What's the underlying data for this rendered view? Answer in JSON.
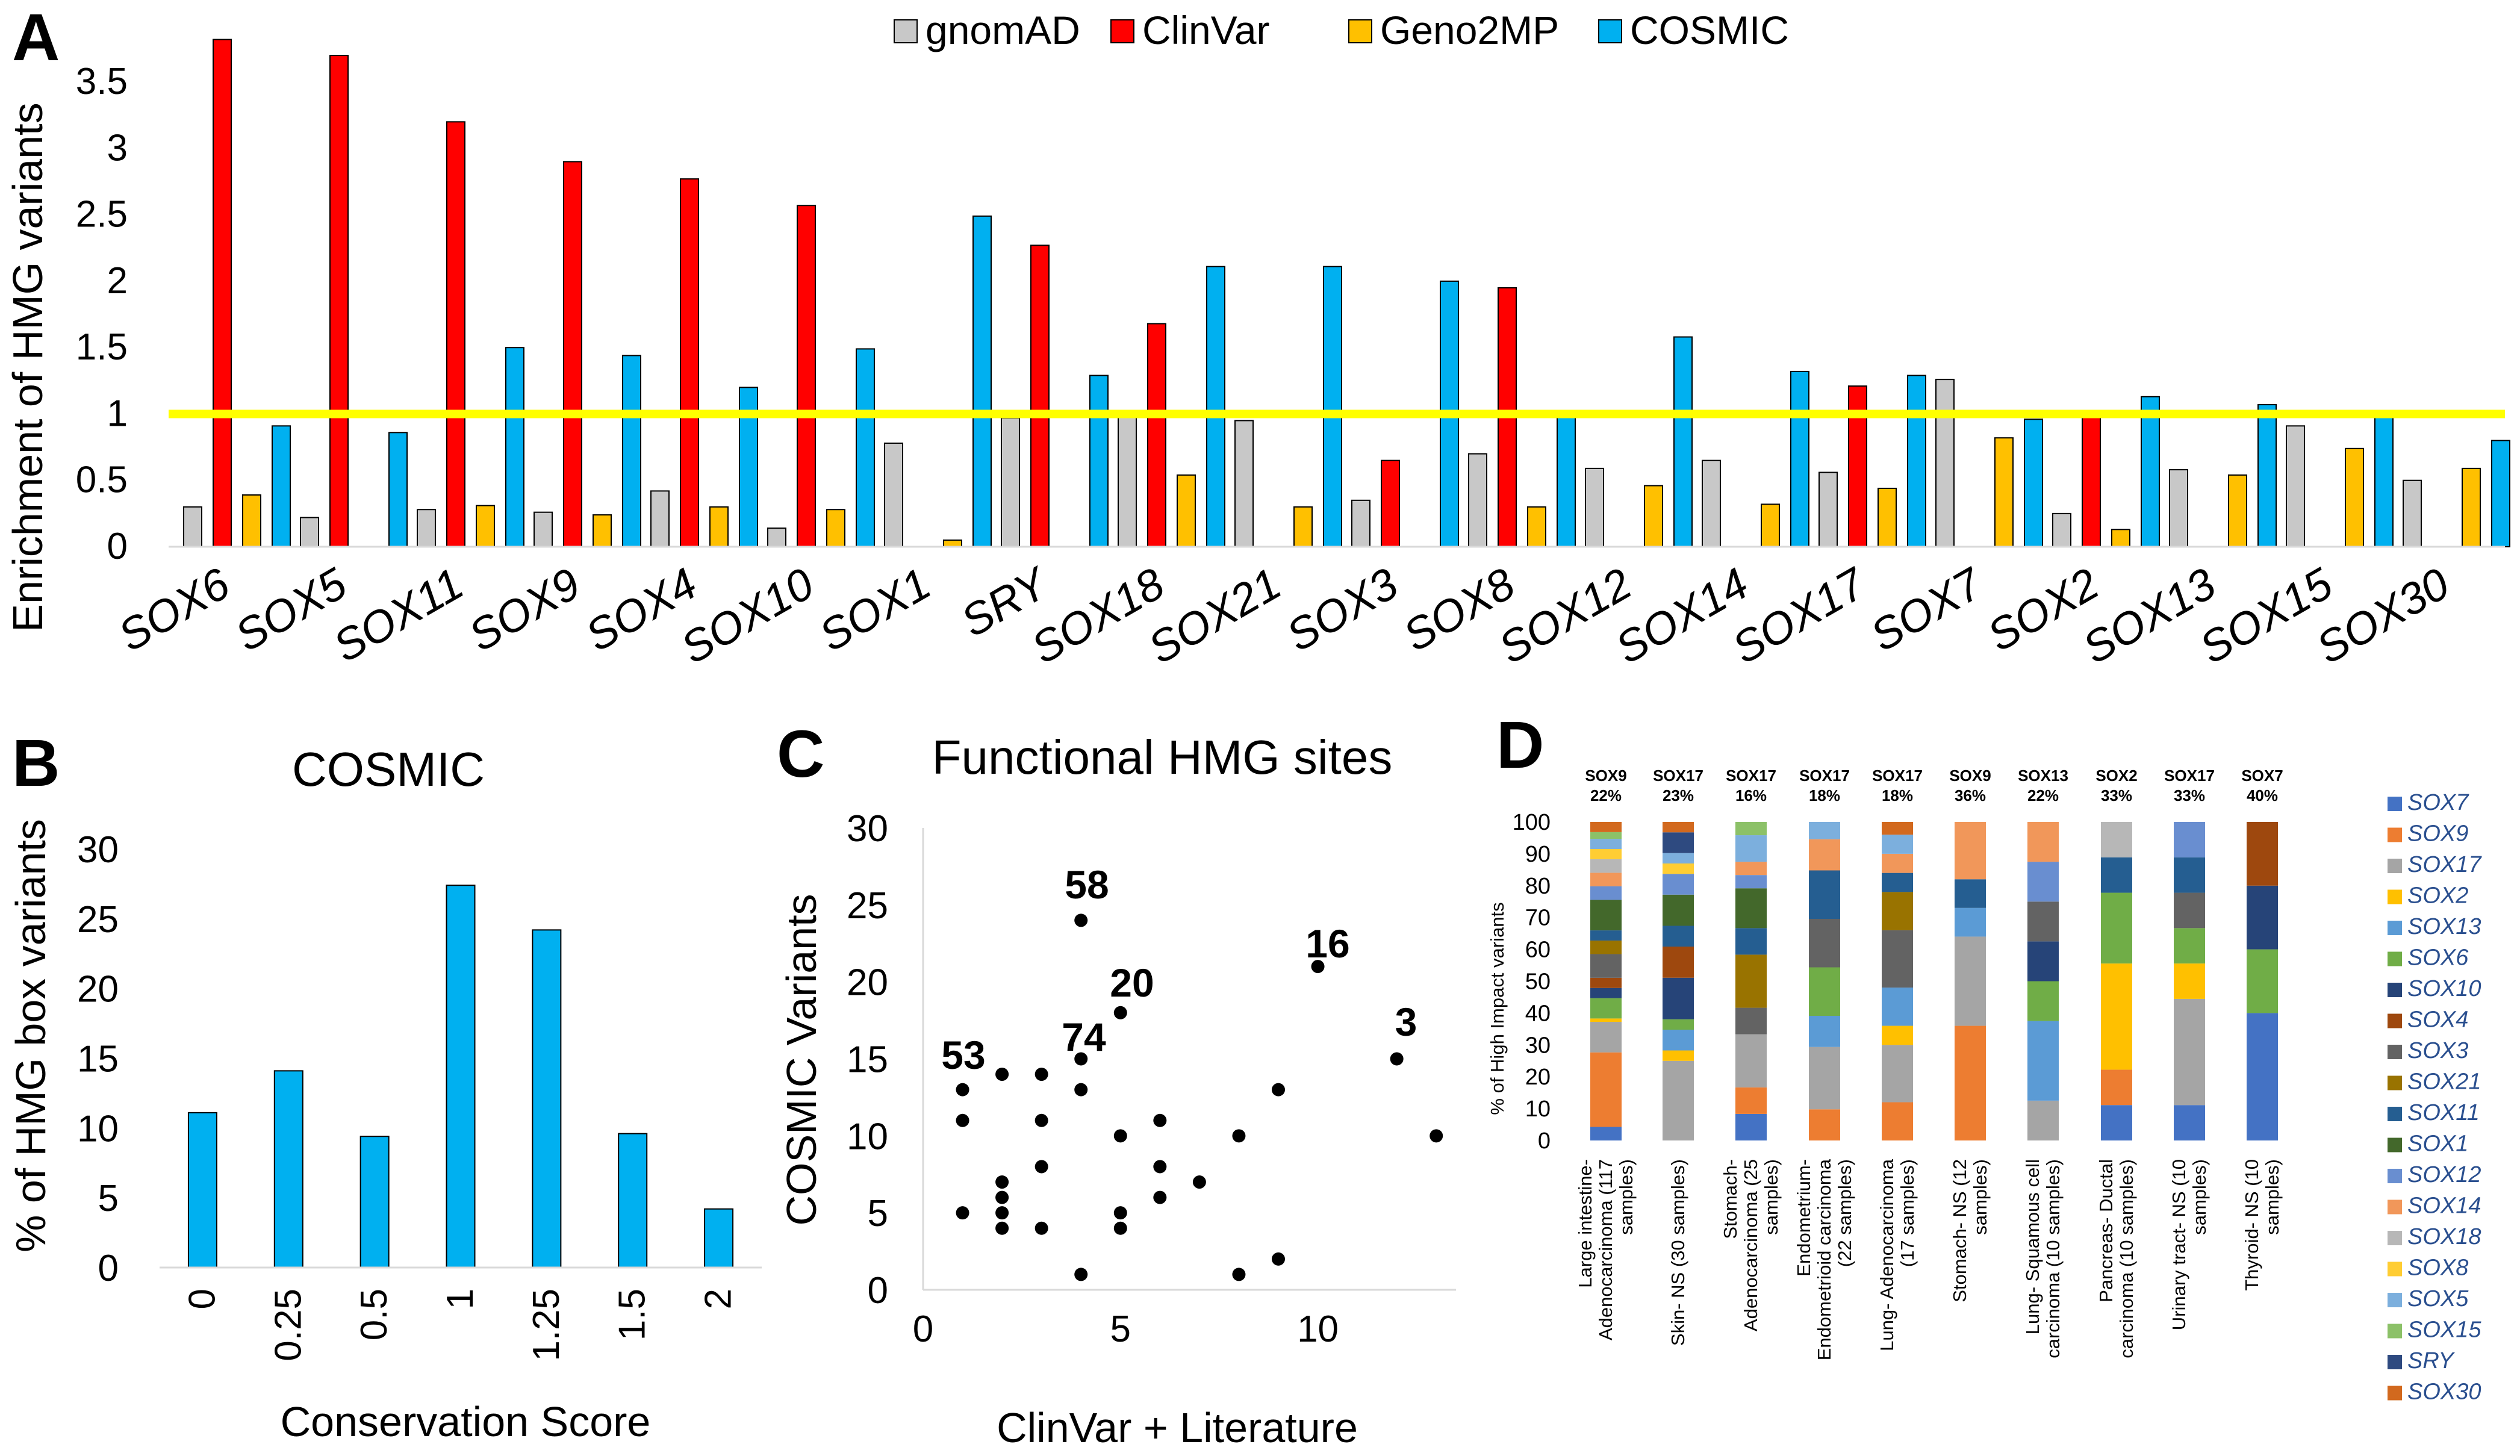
{
  "panel_labels": [
    "A",
    "B",
    "C",
    "D"
  ],
  "colors": {
    "gnomAD": "#c8c8c8",
    "ClinVar": "#ff0000",
    "Geno2MP": "#ffc000",
    "COSMIC": "#00b0f0",
    "threshold": "#ffff00",
    "B_bars": "#00b0f0",
    "points": "#000000"
  },
  "chart_data": [
    {
      "id": "A",
      "type": "bar",
      "title": "",
      "ylabel": "Enrichment of HMG variants",
      "xlabel": "",
      "ylim": [
        0,
        3.8
      ],
      "yticks": [
        "0",
        "0.5",
        "1",
        "1.5",
        "2",
        "2.5",
        "3",
        "3.5"
      ],
      "threshold_line": 1,
      "legend": [
        "gnomAD",
        "ClinVar",
        "Geno2MP",
        "COSMIC"
      ],
      "categories": [
        "SOX6",
        "SOX5",
        "SOX11",
        "SOX9",
        "SOX4",
        "SOX10",
        "SOX1",
        "SRY",
        "SOX18",
        "SOX21",
        "SOX3",
        "SOX8",
        "SOX12",
        "SOX14",
        "SOX17",
        "SOX7",
        "SOX2",
        "SOX13",
        "SOX15",
        "SOX30"
      ],
      "series": [
        {
          "name": "gnomAD",
          "values": [
            0.3,
            0.22,
            0.28,
            0.26,
            0.42,
            0.14,
            0.78,
            0.97,
            0.98,
            0.95,
            0.35,
            0.7,
            0.59,
            0.65,
            0.56,
            1.26,
            0.25,
            0.58,
            0.91,
            0.5
          ]
        },
        {
          "name": "ClinVar",
          "values": [
            3.82,
            3.7,
            3.2,
            2.9,
            2.77,
            2.57,
            0,
            2.27,
            1.68,
            0,
            0.65,
            1.95,
            0,
            0,
            1.21,
            0,
            1.0,
            0,
            0,
            0
          ]
        },
        {
          "name": "Geno2MP",
          "values": [
            0.39,
            0,
            0.31,
            0.24,
            0.3,
            0.28,
            0.05,
            0,
            0.54,
            0.3,
            0,
            0.3,
            0.46,
            0.32,
            0.44,
            0.82,
            0.13,
            0.54,
            0.74,
            0.59
          ]
        },
        {
          "name": "COSMIC",
          "values": [
            0.91,
            0.86,
            1.5,
            1.44,
            1.2,
            1.49,
            2.49,
            1.29,
            2.11,
            2.11,
            2.0,
            0.99,
            1.58,
            1.32,
            1.29,
            0.96,
            1.13,
            1.07,
            0.99,
            0.8
          ]
        }
      ]
    },
    {
      "id": "B",
      "type": "bar",
      "title": "COSMIC",
      "ylabel": "% of HMG box variants",
      "xlabel": "Conservation Score",
      "ylim": [
        0,
        30
      ],
      "yticks": [
        "0",
        "5",
        "10",
        "15",
        "20",
        "25",
        "30"
      ],
      "categories": [
        "0",
        "0.25",
        "0.5",
        "1",
        "1.25",
        "1.5",
        "2"
      ],
      "values": [
        11.1,
        14.1,
        9.4,
        27.4,
        24.2,
        9.6,
        4.2
      ]
    },
    {
      "id": "C",
      "type": "scatter",
      "title": "Functional HMG sites",
      "xlabel": "ClinVar + Literature",
      "ylabel": "COSMIC Variants",
      "xlim": [
        0,
        13.5
      ],
      "ylim": [
        0,
        30
      ],
      "xticks": [
        "0",
        "5",
        "10"
      ],
      "yticks": [
        "0",
        "5",
        "10",
        "15",
        "20",
        "25",
        "30"
      ],
      "x": [
        4,
        5,
        10,
        12,
        1,
        2,
        3,
        4,
        1,
        3,
        6,
        4,
        5,
        9,
        13,
        3,
        6,
        7,
        2,
        5,
        6,
        2,
        2,
        1,
        3,
        5,
        2,
        4,
        8,
        9,
        8
      ],
      "y": [
        24,
        18,
        21,
        15,
        13,
        14,
        14,
        15,
        11,
        11,
        11,
        13,
        10,
        13,
        10,
        8,
        8,
        7,
        7,
        5,
        6,
        6,
        5,
        5,
        4,
        4,
        4,
        1,
        1,
        2,
        10
      ],
      "annotations": [
        "58",
        "20",
        "16",
        "3",
        "53",
        "74"
      ]
    },
    {
      "id": "D",
      "type": "bar",
      "stacked": true,
      "ylabel": "% of High Impact variants",
      "ylim": [
        0,
        100
      ],
      "yticks": [
        "0",
        "10",
        "20",
        "30",
        "40",
        "50",
        "60",
        "70",
        "80",
        "90",
        "100"
      ],
      "categories": [
        "Large intestine- Adenocarcinoma (117 samples)",
        "Skin- NS (30 samples)",
        "Stomach- Adenocarcinoma (25 samples)",
        "Endometrium- Endometrioid carcinoma (22 samples)",
        "Lung- Adenocarcinoma (17 samples)",
        "Stomach- NS (12 samples)",
        "Lung- Squamous cell carcinoma (10 samples)",
        "Pancreas- Ductal carcinoma (10 samples)",
        "Urinary tract- NS (10 samples)",
        "Thyroid- NS (10 samples)"
      ],
      "top_gene": [
        "SOX9",
        "SOX17",
        "SOX17",
        "SOX17",
        "SOX17",
        "SOX9",
        "SOX13",
        "SOX2",
        "SOX17",
        "SOX7"
      ],
      "top_pct": [
        "22%",
        "23%",
        "16%",
        "18%",
        "18%",
        "36%",
        "22%",
        "33%",
        "33%",
        "40%"
      ],
      "legend": [
        "SOX7",
        "SOX9",
        "SOX17",
        "SOX2",
        "SOX13",
        "SOX6",
        "SOX10",
        "SOX4",
        "SOX3",
        "SOX21",
        "SOX11",
        "SOX1",
        "SOX12",
        "SOX14",
        "SOX18",
        "SOX8",
        "SOX5",
        "SOX15",
        "SRY",
        "SOX30"
      ],
      "series": [
        {
          "name": "SOX7",
          "color": "#4472c4",
          "values": [
            4,
            0,
            8,
            0,
            0,
            0,
            0,
            11,
            11,
            40
          ]
        },
        {
          "name": "SOX9",
          "color": "#ed7d31",
          "values": [
            22,
            0,
            8,
            9,
            12,
            36,
            0,
            11,
            0,
            0
          ]
        },
        {
          "name": "SOX17",
          "color": "#a5a5a5",
          "values": [
            9,
            23,
            16,
            18,
            18,
            28,
            11,
            0,
            33,
            0
          ]
        },
        {
          "name": "SOX2",
          "color": "#ffc000",
          "values": [
            1,
            3,
            0,
            0,
            6,
            0,
            0,
            33,
            11,
            0
          ]
        },
        {
          "name": "SOX13",
          "color": "#5b9bd5",
          "values": [
            0,
            6,
            0,
            9,
            12,
            9,
            22,
            0,
            0,
            0
          ]
        },
        {
          "name": "SOX6",
          "color": "#70ad47",
          "values": [
            6,
            3,
            0,
            14,
            0,
            0,
            11,
            22,
            11,
            20
          ]
        },
        {
          "name": "SOX10",
          "color": "#264478",
          "values": [
            3,
            12,
            0,
            0,
            0,
            0,
            11,
            0,
            0,
            20
          ]
        },
        {
          "name": "SOX4",
          "color": "#9e480e",
          "values": [
            3,
            9,
            0,
            0,
            0,
            0,
            0,
            0,
            0,
            20
          ]
        },
        {
          "name": "SOX3",
          "color": "#636363",
          "values": [
            7,
            0,
            8,
            14,
            18,
            0,
            11,
            0,
            11,
            0
          ]
        },
        {
          "name": "SOX21",
          "color": "#997300",
          "values": [
            4,
            0,
            16,
            0,
            12,
            0,
            0,
            0,
            0,
            0
          ]
        },
        {
          "name": "SOX11",
          "color": "#255e91",
          "values": [
            3,
            6,
            8,
            14,
            6,
            9,
            0,
            11,
            11,
            0
          ]
        },
        {
          "name": "SOX1",
          "color": "#43682b",
          "values": [
            9,
            9,
            12,
            0,
            0,
            0,
            0,
            0,
            0,
            0
          ]
        },
        {
          "name": "SOX12",
          "color": "#698ed0",
          "values": [
            4,
            6,
            4,
            0,
            0,
            0,
            11,
            0,
            11,
            0
          ]
        },
        {
          "name": "SOX14",
          "color": "#f1975a",
          "values": [
            4,
            0,
            4,
            9,
            6,
            18,
            11,
            0,
            0,
            0
          ]
        },
        {
          "name": "SOX18",
          "color": "#b7b7b7",
          "values": [
            4,
            0,
            0,
            0,
            0,
            0,
            0,
            11,
            0,
            0
          ]
        },
        {
          "name": "SOX8",
          "color": "#ffcd33",
          "values": [
            3,
            3,
            0,
            0,
            0,
            0,
            0,
            0,
            0,
            0
          ]
        },
        {
          "name": "SOX5",
          "color": "#7cafdd",
          "values": [
            3,
            3,
            8,
            5,
            6,
            0,
            0,
            0,
            0,
            0
          ]
        },
        {
          "name": "SOX15",
          "color": "#8cc168",
          "values": [
            2,
            0,
            4,
            0,
            0,
            0,
            0,
            0,
            0,
            0
          ]
        },
        {
          "name": "SRY",
          "color": "#2e4a80",
          "values": [
            0,
            6,
            0,
            0,
            0,
            0,
            0,
            0,
            0,
            0
          ]
        },
        {
          "name": "SOX30",
          "color": "#d2691e",
          "values": [
            3,
            3,
            0,
            0,
            4,
            0,
            0,
            0,
            0,
            0
          ]
        }
      ]
    }
  ]
}
